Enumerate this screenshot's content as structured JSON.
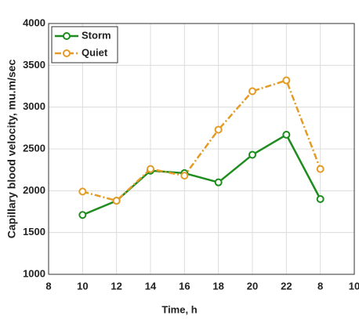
{
  "chart_data": {
    "type": "line",
    "xlabel": "Time, h",
    "ylabel": "Capillary blood velocity, mu.m/sec",
    "categories": [
      "8",
      "10",
      "12",
      "14",
      "16",
      "18",
      "20",
      "22",
      "8",
      "10"
    ],
    "series": [
      {
        "name": "Storm",
        "color": "#1e8c1e",
        "dash": "solid",
        "values": [
          null,
          1710,
          1880,
          2240,
          2210,
          2100,
          2430,
          2670,
          1900,
          null
        ]
      },
      {
        "name": "Quiet",
        "color": "#e39b26",
        "dash": "dashdot",
        "values": [
          null,
          1990,
          1880,
          2260,
          2180,
          2730,
          3190,
          3320,
          2260,
          null
        ]
      }
    ],
    "ylim": [
      1000,
      4000
    ],
    "yticks": [
      1000,
      1500,
      2000,
      2500,
      3000,
      3500,
      4000
    ],
    "grid": true,
    "legend": "upper-left"
  }
}
